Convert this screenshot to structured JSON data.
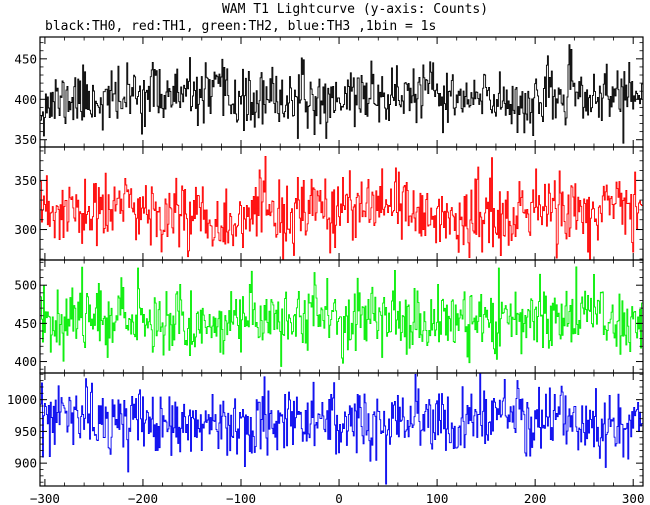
{
  "chart_data": {
    "type": "line",
    "title": "WAM T1 Lightcurve (y-axis: Counts)",
    "subtitle": "black:TH0, red:TH1, green:TH2, blue:TH3 ,1bin = 1s",
    "xlim": [
      -305,
      310
    ],
    "xticks": [
      -300,
      -200,
      -100,
      0,
      100,
      200,
      300
    ],
    "grid": false,
    "bin_width": 1,
    "panels": [
      {
        "name": "TH0",
        "color": "#000000",
        "ylim": [
          341,
          477
        ],
        "yticks": [
          350,
          400,
          450
        ],
        "mean": 402,
        "sigma": 18,
        "seed": 11
      },
      {
        "name": "TH1",
        "color": "#ff0000",
        "ylim": [
          269,
          384
        ],
        "yticks": [
          300,
          350
        ],
        "mean": 316,
        "sigma": 18,
        "seed": 23
      },
      {
        "name": "TH2",
        "color": "#00ee00",
        "ylim": [
          385,
          533
        ],
        "yticks": [
          400,
          450,
          500
        ],
        "mean": 456,
        "sigma": 22,
        "seed": 37
      },
      {
        "name": "TH3",
        "color": "#0000ee",
        "ylim": [
          864,
          1042
        ],
        "yticks": [
          900,
          950,
          1000
        ],
        "mean": 965,
        "sigma": 26,
        "seed": 53
      }
    ]
  }
}
